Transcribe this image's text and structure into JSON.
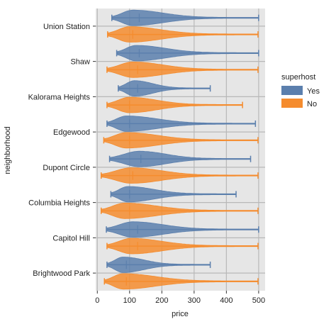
{
  "chart_data": {
    "type": "violin",
    "orientation": "horizontal",
    "xlabel": "price",
    "ylabel": "neighborhood",
    "xlim": [
      -5,
      520
    ],
    "xticks": [
      0,
      100,
      200,
      300,
      400,
      500
    ],
    "grid": true,
    "legend": {
      "title": "superhost",
      "placement": "right"
    },
    "colors": {
      "Yes": "#5b7fad",
      "No": "#f58c2e",
      "panel": "#e6e6e6",
      "grid": "#b8b8b8"
    },
    "categories": [
      "Union Station",
      "Shaw",
      "Kalorama Heights",
      "Edgewood",
      "Dupont Circle",
      "Columbia Heights",
      "Capitol Hill",
      "Brightwood Park"
    ],
    "series": [
      {
        "name": "Yes",
        "violins": [
          {
            "min": 45,
            "max": 500,
            "median": 130,
            "mode": 110
          },
          {
            "min": 60,
            "max": 500,
            "median": 130,
            "mode": 120
          },
          {
            "min": 65,
            "max": 350,
            "median": 125,
            "mode": 115
          },
          {
            "min": 30,
            "max": 490,
            "median": 100,
            "mode": 90
          },
          {
            "min": 38,
            "max": 475,
            "median": 135,
            "mode": 130
          },
          {
            "min": 42,
            "max": 430,
            "median": 100,
            "mode": 95
          },
          {
            "min": 28,
            "max": 500,
            "median": 125,
            "mode": 110
          },
          {
            "min": 30,
            "max": 350,
            "median": 90,
            "mode": 80
          }
        ]
      },
      {
        "name": "No",
        "violins": [
          {
            "min": 32,
            "max": 498,
            "median": 110,
            "mode": 100
          },
          {
            "min": 30,
            "max": 498,
            "median": 125,
            "mode": 110
          },
          {
            "min": 30,
            "max": 450,
            "median": 100,
            "mode": 100
          },
          {
            "min": 20,
            "max": 498,
            "median": 100,
            "mode": 90
          },
          {
            "min": 12,
            "max": 498,
            "median": 110,
            "mode": 105
          },
          {
            "min": 12,
            "max": 498,
            "median": 100,
            "mode": 85
          },
          {
            "min": 30,
            "max": 498,
            "median": 125,
            "mode": 105
          },
          {
            "min": 22,
            "max": 498,
            "median": 90,
            "mode": 80
          }
        ]
      }
    ]
  }
}
